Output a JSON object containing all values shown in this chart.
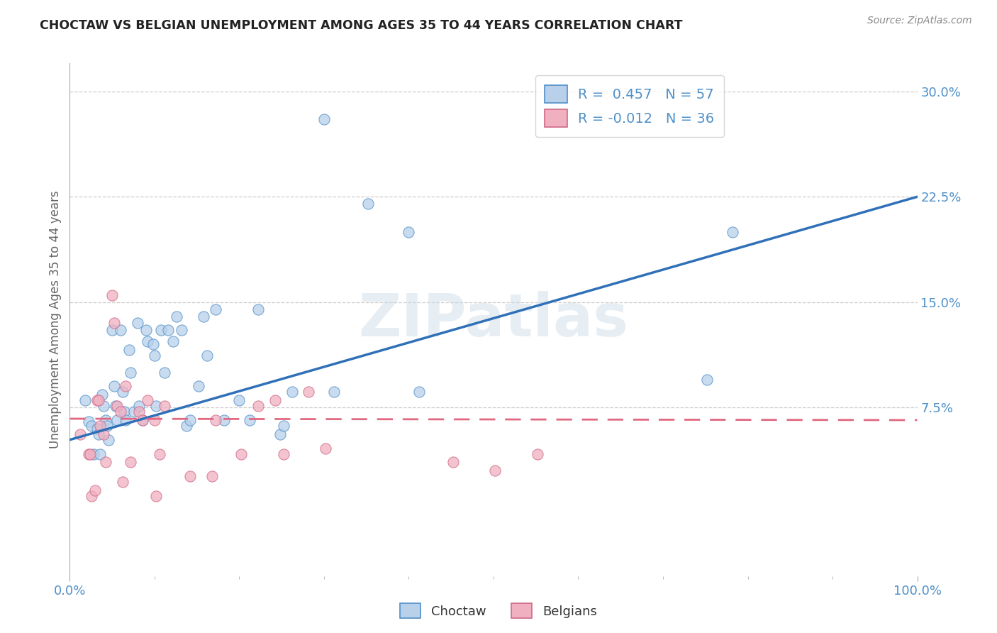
{
  "title": "CHOCTAW VS BELGIAN UNEMPLOYMENT AMONG AGES 35 TO 44 YEARS CORRELATION CHART",
  "source": "Source: ZipAtlas.com",
  "ylabel": "Unemployment Among Ages 35 to 44 years",
  "xlim": [
    0,
    1.0
  ],
  "ylim": [
    -0.045,
    0.32
  ],
  "xtick_positions": [
    0.0,
    1.0
  ],
  "xtick_labels": [
    "0.0%",
    "100.0%"
  ],
  "ytick_values": [
    0.075,
    0.15,
    0.225,
    0.3
  ],
  "ytick_labels": [
    "7.5%",
    "15.0%",
    "22.5%",
    "30.0%"
  ],
  "choctaw_fill": "#b8d0ea",
  "choctaw_edge": "#5090c8",
  "belgian_fill": "#f0b0c0",
  "belgian_edge": "#d06888",
  "choctaw_line_color": "#3070b8",
  "belgian_line_color": "#e06880",
  "choctaw_R": 0.457,
  "choctaw_N": 57,
  "belgian_R": -0.012,
  "belgian_N": 36,
  "legend_label_choctaw": "Choctaw",
  "legend_label_belgian": "Belgians",
  "watermark": "ZIPatlas",
  "choctaw_scatter_x": [
    0.018,
    0.022,
    0.026,
    0.028,
    0.032,
    0.034,
    0.036,
    0.038,
    0.04,
    0.042,
    0.044,
    0.046,
    0.05,
    0.052,
    0.054,
    0.056,
    0.06,
    0.062,
    0.064,
    0.066,
    0.07,
    0.072,
    0.076,
    0.08,
    0.082,
    0.086,
    0.09,
    0.092,
    0.098,
    0.1,
    0.102,
    0.108,
    0.112,
    0.116,
    0.122,
    0.126,
    0.132,
    0.138,
    0.142,
    0.152,
    0.158,
    0.162,
    0.172,
    0.182,
    0.2,
    0.212,
    0.222,
    0.248,
    0.252,
    0.262,
    0.3,
    0.312,
    0.352,
    0.4,
    0.412,
    0.752,
    0.782
  ],
  "choctaw_scatter_y": [
    0.08,
    0.065,
    0.062,
    0.042,
    0.06,
    0.056,
    0.042,
    0.084,
    0.076,
    0.066,
    0.062,
    0.052,
    0.13,
    0.09,
    0.076,
    0.066,
    0.13,
    0.086,
    0.072,
    0.066,
    0.116,
    0.1,
    0.072,
    0.135,
    0.076,
    0.066,
    0.13,
    0.122,
    0.12,
    0.112,
    0.076,
    0.13,
    0.1,
    0.13,
    0.122,
    0.14,
    0.13,
    0.062,
    0.066,
    0.09,
    0.14,
    0.112,
    0.145,
    0.066,
    0.08,
    0.066,
    0.145,
    0.056,
    0.062,
    0.086,
    0.28,
    0.086,
    0.22,
    0.2,
    0.086,
    0.095,
    0.2
  ],
  "belgian_scatter_x": [
    0.012,
    0.022,
    0.024,
    0.026,
    0.03,
    0.032,
    0.034,
    0.036,
    0.04,
    0.042,
    0.05,
    0.052,
    0.056,
    0.06,
    0.062,
    0.066,
    0.072,
    0.082,
    0.086,
    0.092,
    0.1,
    0.102,
    0.106,
    0.112,
    0.142,
    0.168,
    0.172,
    0.202,
    0.222,
    0.242,
    0.252,
    0.282,
    0.302,
    0.452,
    0.502,
    0.552
  ],
  "belgian_scatter_y": [
    0.056,
    0.042,
    0.042,
    0.012,
    0.016,
    0.08,
    0.08,
    0.062,
    0.056,
    0.036,
    0.155,
    0.135,
    0.076,
    0.072,
    0.022,
    0.09,
    0.036,
    0.072,
    0.066,
    0.08,
    0.066,
    0.012,
    0.042,
    0.076,
    0.026,
    0.026,
    0.066,
    0.042,
    0.076,
    0.08,
    0.042,
    0.086,
    0.046,
    0.036,
    0.03,
    0.042
  ],
  "choctaw_line_x": [
    0.0,
    1.0
  ],
  "choctaw_line_y": [
    0.052,
    0.225
  ],
  "belgian_line_x": [
    0.0,
    1.0
  ],
  "belgian_line_y": [
    0.067,
    0.066
  ],
  "background_color": "#ffffff",
  "grid_color": "#cccccc"
}
